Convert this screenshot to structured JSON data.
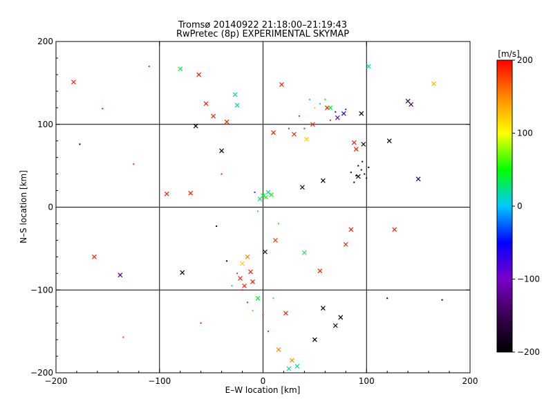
{
  "chart_data": {
    "type": "scatter",
    "title": "Tromsø 20140922 21:18:00–21:19:43",
    "subtitle": "RwPretec (8p) EXPERIMENTAL SKYMAP",
    "xlabel": "E–W location [km]",
    "ylabel": "N–S location [km]",
    "xlim": [
      -200,
      200
    ],
    "ylim": [
      -200,
      200
    ],
    "x_ticks": [
      -200,
      -100,
      0,
      100,
      200
    ],
    "y_ticks": [
      -200,
      -100,
      0,
      100,
      200
    ],
    "x_tick_labels": [
      "−200",
      "−100",
      "0",
      "100",
      "200"
    ],
    "y_tick_labels": [
      "−200",
      "−100",
      "0",
      "100",
      "200"
    ],
    "grid": true,
    "grid_lines": [
      -100,
      0,
      100
    ],
    "marker_kinds": [
      "dot",
      "cross"
    ],
    "colorbar": {
      "label": "[m/s]",
      "range": [
        -200,
        200
      ],
      "ticks": [
        200,
        100,
        0,
        -100,
        -200
      ],
      "tick_labels": [
        "200",
        "100",
        "0",
        "−100",
        "−200"
      ],
      "colormap": [
        "#000000",
        "#3a0050",
        "#7a00c8",
        "#0000ff",
        "#00c8ff",
        "#00ff00",
        "#ffff00",
        "#ff8800",
        "#ff0000"
      ]
    },
    "points": [
      {
        "x": -183,
        "y": 151,
        "v": 190,
        "m": "x"
      },
      {
        "x": -177,
        "y": 76,
        "v": -200,
        "m": "."
      },
      {
        "x": -163,
        "y": -60,
        "v": 190,
        "m": "x"
      },
      {
        "x": -155,
        "y": 119,
        "v": 190,
        "m": "."
      },
      {
        "x": -138,
        "y": -82,
        "v": -140,
        "m": "x"
      },
      {
        "x": -135,
        "y": -157,
        "v": 180,
        "m": "."
      },
      {
        "x": -125,
        "y": 52,
        "v": 190,
        "m": "."
      },
      {
        "x": -93,
        "y": 16,
        "v": 190,
        "m": "x"
      },
      {
        "x": -80,
        "y": 167,
        "v": 40,
        "m": "x"
      },
      {
        "x": -78,
        "y": -79,
        "v": -200,
        "m": "x"
      },
      {
        "x": -70,
        "y": 17,
        "v": 190,
        "m": "x"
      },
      {
        "x": -65,
        "y": 98,
        "v": -200,
        "m": "x"
      },
      {
        "x": -62,
        "y": 160,
        "v": 190,
        "m": "x"
      },
      {
        "x": -55,
        "y": 125,
        "v": 190,
        "m": "x"
      },
      {
        "x": -48,
        "y": 110,
        "v": 190,
        "m": "x"
      },
      {
        "x": -45,
        "y": -23,
        "v": -200,
        "m": "."
      },
      {
        "x": -40,
        "y": 68,
        "v": -200,
        "m": "x"
      },
      {
        "x": -35,
        "y": 103,
        "v": 190,
        "m": "x"
      },
      {
        "x": -27,
        "y": 136,
        "v": 20,
        "m": "x"
      },
      {
        "x": -25,
        "y": 123,
        "v": 20,
        "m": "x"
      },
      {
        "x": -22,
        "y": -86,
        "v": 190,
        "m": "x"
      },
      {
        "x": -20,
        "y": -68,
        "v": 120,
        "m": "x"
      },
      {
        "x": -18,
        "y": -95,
        "v": 190,
        "m": "x"
      },
      {
        "x": -15,
        "y": -60,
        "v": 150,
        "m": "x"
      },
      {
        "x": -12,
        "y": -78,
        "v": 190,
        "m": "x"
      },
      {
        "x": -10,
        "y": -90,
        "v": 190,
        "m": "x"
      },
      {
        "x": -8,
        "y": 18,
        "v": -100,
        "m": "."
      },
      {
        "x": -5,
        "y": -110,
        "v": 40,
        "m": "x"
      },
      {
        "x": -3,
        "y": 10,
        "v": 30,
        "m": "x"
      },
      {
        "x": 0,
        "y": 14,
        "v": 40,
        "m": "x"
      },
      {
        "x": 2,
        "y": -54,
        "v": -150,
        "m": "x"
      },
      {
        "x": 3,
        "y": 12,
        "v": 60,
        "m": "x"
      },
      {
        "x": 5,
        "y": 18,
        "v": 20,
        "m": "x"
      },
      {
        "x": 8,
        "y": 15,
        "v": 50,
        "m": "x"
      },
      {
        "x": 10,
        "y": 90,
        "v": 190,
        "m": "x"
      },
      {
        "x": 12,
        "y": -40,
        "v": 180,
        "m": "x"
      },
      {
        "x": 15,
        "y": -172,
        "v": 150,
        "m": "x"
      },
      {
        "x": 18,
        "y": 148,
        "v": 190,
        "m": "x"
      },
      {
        "x": 22,
        "y": -128,
        "v": 190,
        "m": "x"
      },
      {
        "x": 25,
        "y": -195,
        "v": 20,
        "m": "x"
      },
      {
        "x": 28,
        "y": -185,
        "v": 150,
        "m": "x"
      },
      {
        "x": 30,
        "y": 88,
        "v": 190,
        "m": "x"
      },
      {
        "x": 33,
        "y": -192,
        "v": 20,
        "m": "x"
      },
      {
        "x": 38,
        "y": 24,
        "v": -200,
        "m": "x"
      },
      {
        "x": 40,
        "y": -55,
        "v": 30,
        "m": "x"
      },
      {
        "x": 42,
        "y": 82,
        "v": 120,
        "m": "x"
      },
      {
        "x": 48,
        "y": 100,
        "v": 190,
        "m": "x"
      },
      {
        "x": 50,
        "y": -160,
        "v": -200,
        "m": "x"
      },
      {
        "x": 55,
        "y": -77,
        "v": 190,
        "m": "x"
      },
      {
        "x": 58,
        "y": 32,
        "v": -200,
        "m": "x"
      },
      {
        "x": 58,
        "y": -122,
        "v": -200,
        "m": "x"
      },
      {
        "x": 62,
        "y": 120,
        "v": 190,
        "m": "x"
      },
      {
        "x": 65,
        "y": 120,
        "v": 40,
        "m": "x"
      },
      {
        "x": 70,
        "y": -143,
        "v": -200,
        "m": "x"
      },
      {
        "x": 72,
        "y": 108,
        "v": -110,
        "m": "x"
      },
      {
        "x": 75,
        "y": -133,
        "v": -200,
        "m": "x"
      },
      {
        "x": 78,
        "y": 113,
        "v": -60,
        "m": "x"
      },
      {
        "x": 80,
        "y": -45,
        "v": 190,
        "m": "x"
      },
      {
        "x": 85,
        "y": -27,
        "v": 190,
        "m": "x"
      },
      {
        "x": 88,
        "y": 78,
        "v": 190,
        "m": "x"
      },
      {
        "x": 90,
        "y": 70,
        "v": 190,
        "m": "x"
      },
      {
        "x": 92,
        "y": 37,
        "v": -200,
        "m": "x"
      },
      {
        "x": 95,
        "y": 113,
        "v": -200,
        "m": "x"
      },
      {
        "x": 97,
        "y": 76,
        "v": -200,
        "m": "x"
      },
      {
        "x": 102,
        "y": 170,
        "v": 20,
        "m": "x"
      },
      {
        "x": 122,
        "y": 80,
        "v": -200,
        "m": "x"
      },
      {
        "x": 127,
        "y": -27,
        "v": 190,
        "m": "x"
      },
      {
        "x": 140,
        "y": 128,
        "v": -160,
        "m": "x"
      },
      {
        "x": 143,
        "y": 124,
        "v": -160,
        "m": "x"
      },
      {
        "x": 150,
        "y": 34,
        "v": -160,
        "m": "x"
      },
      {
        "x": 165,
        "y": 149,
        "v": 130,
        "m": "x"
      },
      {
        "x": 173,
        "y": -112,
        "v": -200,
        "m": "."
      },
      {
        "x": 95,
        "y": 45,
        "v": -200,
        "m": "."
      },
      {
        "x": 98,
        "y": 40,
        "v": -200,
        "m": "."
      },
      {
        "x": 92,
        "y": 50,
        "v": -200,
        "m": "."
      },
      {
        "x": 100,
        "y": 35,
        "v": -200,
        "m": "."
      },
      {
        "x": 85,
        "y": 42,
        "v": -200,
        "m": "."
      },
      {
        "x": 88,
        "y": 30,
        "v": -200,
        "m": "."
      },
      {
        "x": 96,
        "y": 55,
        "v": -200,
        "m": "."
      },
      {
        "x": 102,
        "y": 48,
        "v": -200,
        "m": "."
      },
      {
        "x": 90,
        "y": 38,
        "v": -200,
        "m": "."
      },
      {
        "x": 55,
        "y": 125,
        "v": 20,
        "m": "."
      },
      {
        "x": 60,
        "y": 130,
        "v": 40,
        "m": "."
      },
      {
        "x": 50,
        "y": 120,
        "v": 120,
        "m": "."
      },
      {
        "x": 70,
        "y": 115,
        "v": -60,
        "m": "."
      },
      {
        "x": 80,
        "y": 118,
        "v": -80,
        "m": "."
      },
      {
        "x": 45,
        "y": 130,
        "v": 20,
        "m": "."
      },
      {
        "x": 35,
        "y": 110,
        "v": 190,
        "m": "."
      },
      {
        "x": 25,
        "y": 95,
        "v": 190,
        "m": "."
      },
      {
        "x": 40,
        "y": 95,
        "v": 190,
        "m": "."
      },
      {
        "x": 65,
        "y": 105,
        "v": 190,
        "m": "."
      },
      {
        "x": -20,
        "y": -100,
        "v": 190,
        "m": "."
      },
      {
        "x": -25,
        "y": -80,
        "v": 190,
        "m": "."
      },
      {
        "x": -15,
        "y": -115,
        "v": 190,
        "m": "."
      },
      {
        "x": -30,
        "y": -95,
        "v": 40,
        "m": "."
      },
      {
        "x": 0,
        "y": -130,
        "v": 190,
        "m": "."
      },
      {
        "x": 5,
        "y": -150,
        "v": 190,
        "m": "."
      },
      {
        "x": 10,
        "y": -110,
        "v": 30,
        "m": "."
      },
      {
        "x": -10,
        "y": -125,
        "v": 60,
        "m": "."
      },
      {
        "x": -35,
        "y": -65,
        "v": -200,
        "m": "."
      },
      {
        "x": -5,
        "y": -5,
        "v": 40,
        "m": "."
      },
      {
        "x": 15,
        "y": -20,
        "v": 50,
        "m": "."
      },
      {
        "x": -40,
        "y": 40,
        "v": 190,
        "m": "."
      },
      {
        "x": -110,
        "y": 170,
        "v": 190,
        "m": "."
      },
      {
        "x": -60,
        "y": -140,
        "v": 190,
        "m": "."
      },
      {
        "x": 120,
        "y": -110,
        "v": -200,
        "m": "."
      }
    ]
  }
}
